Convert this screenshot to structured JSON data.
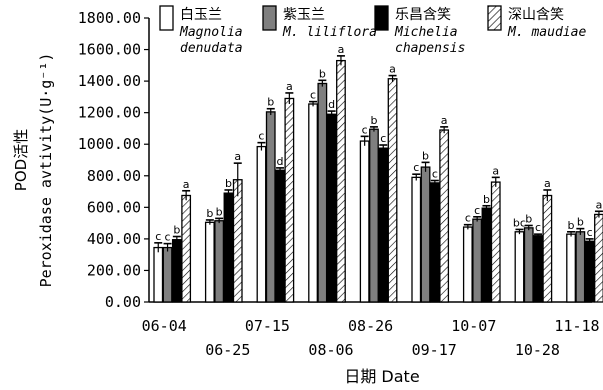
{
  "chart_data": {
    "type": "bar",
    "title": "",
    "ylabel_cn": "POD活性",
    "ylabel_en": "Peroxidase avtivity(U·g⁻¹)",
    "xlabel": "日期 Date",
    "ylim": [
      0,
      1800
    ],
    "yticks": [
      "0.00",
      "200.00",
      "400.00",
      "600.00",
      "800.00",
      "1000.00",
      "1200.00",
      "1400.00",
      "1600.00",
      "1800.00"
    ],
    "ytick_values": [
      0,
      200,
      400,
      600,
      800,
      1000,
      1200,
      1400,
      1600,
      1800
    ],
    "categories": [
      "06-04",
      "06-25",
      "07-15",
      "08-06",
      "08-26",
      "09-17",
      "10-07",
      "10-28",
      "11-18"
    ],
    "legend": {
      "position": "top"
    },
    "series": [
      {
        "name_cn": "白玉兰",
        "name_latin": [
          "Magnolia",
          "denudata"
        ],
        "pattern": "white",
        "values": [
          345,
          505,
          985,
          1255,
          1020,
          790,
          475,
          445,
          430
        ],
        "errors": [
          30,
          15,
          25,
          15,
          30,
          20,
          15,
          15,
          15
        ],
        "letters": [
          "c",
          "b",
          "c",
          "c",
          "c",
          "c",
          "c",
          "bc",
          "b"
        ]
      },
      {
        "name_cn": "紫玉兰",
        "name_latin": [
          "M. liliflora"
        ],
        "pattern": "gray",
        "values": [
          345,
          515,
          1205,
          1385,
          1095,
          855,
          525,
          470,
          445
        ],
        "errors": [
          25,
          15,
          20,
          20,
          15,
          30,
          15,
          15,
          20
        ],
        "letters": [
          "c",
          "b",
          "b",
          "b",
          "b",
          "b",
          "c",
          "b",
          "b"
        ]
      },
      {
        "name_cn": "乐昌含笑",
        "name_latin": [
          "Michelia",
          "chapensis"
        ],
        "pattern": "black",
        "values": [
          395,
          690,
          835,
          1190,
          975,
          755,
          595,
          420,
          385
        ],
        "errors": [
          20,
          20,
          15,
          20,
          20,
          15,
          15,
          10,
          15
        ],
        "letters": [
          "b",
          "b",
          "d",
          "d",
          "c",
          "c",
          "b",
          "c",
          "c"
        ]
      },
      {
        "name_cn": "深山含笑",
        "name_latin": [
          "M. maudiae"
        ],
        "pattern": "hatch",
        "values": [
          675,
          775,
          1290,
          1530,
          1415,
          1090,
          760,
          675,
          555
        ],
        "errors": [
          30,
          105,
          35,
          30,
          20,
          20,
          30,
          35,
          20
        ],
        "letters": [
          "a",
          "a",
          "a",
          "a",
          "a",
          "a",
          "a",
          "a",
          "a"
        ]
      }
    ]
  }
}
